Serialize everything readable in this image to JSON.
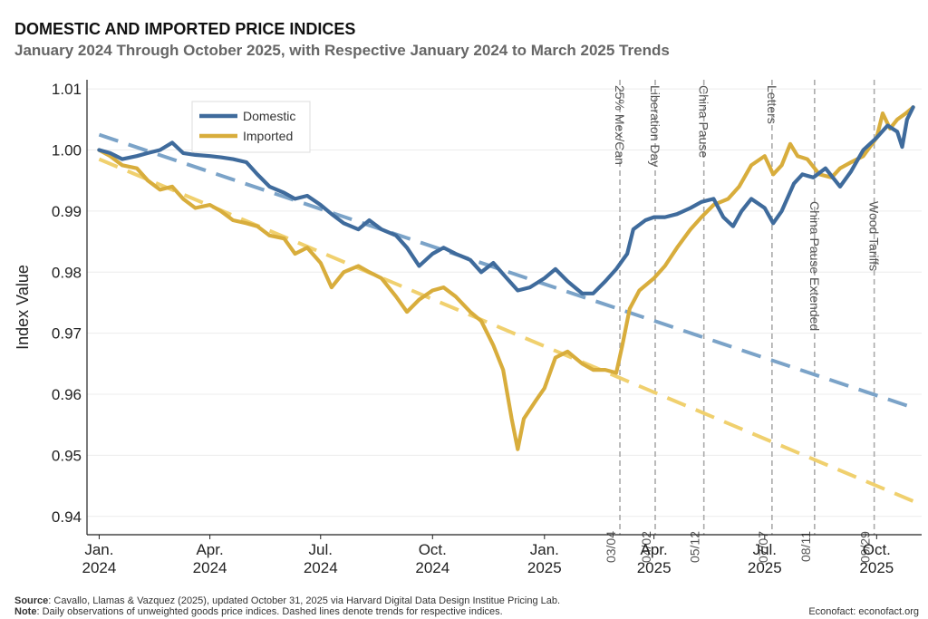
{
  "header": {
    "title": "DOMESTIC AND IMPORTED PRICE INDICES",
    "subtitle": "January 2024 Through October 2025, with Respective January 2024 to March 2025 Trends"
  },
  "footer": {
    "source_label": "Source",
    "source_text": ": Cavallo, Llamas & Vazquez (2025), updated October 31, 2025 via Harvard Digital Data Design Institue Pricing Lab.",
    "note_label": "Note",
    "note_text": ": Daily observations of unweighted goods price indices. Dashed lines denote trends for respective indices.",
    "credit": "Econofact: econofact.org"
  },
  "chart_data": {
    "type": "line",
    "ylabel": "Index Value",
    "ylim": [
      0.937,
      1.0115
    ],
    "yticks": [
      0.94,
      0.95,
      0.96,
      0.97,
      0.98,
      0.99,
      1.0,
      1.01
    ],
    "ytick_labels": [
      "0.94",
      "0.95",
      "0.96",
      "0.97",
      "0.98",
      "0.99",
      "1.00",
      "1.01"
    ],
    "xlim": [
      "2023-12-22",
      "2025-11-07"
    ],
    "xticks": [
      {
        "date": "2024-01-01",
        "line1": "Jan.",
        "line2": "2024"
      },
      {
        "date": "2024-04-01",
        "line1": "Apr.",
        "line2": "2024"
      },
      {
        "date": "2024-07-01",
        "line1": "Jul.",
        "line2": "2024"
      },
      {
        "date": "2024-10-01",
        "line1": "Oct.",
        "line2": "2024"
      },
      {
        "date": "2025-01-01",
        "line1": "Jan.",
        "line2": "2025"
      },
      {
        "date": "2025-04-01",
        "line1": "Apr.",
        "line2": "2025"
      },
      {
        "date": "2025-07-01",
        "line1": "Jul.",
        "line2": "2025"
      },
      {
        "date": "2025-10-01",
        "line1": "Oct.",
        "line2": "2025"
      }
    ],
    "grid": "horizontal",
    "legend_position": "top-left",
    "colors": {
      "domestic": "#3f6b9c",
      "imported": "#d8ad3c",
      "domestic_trend": "#7ba3c8",
      "imported_trend": "#f0d06e",
      "event": "#aaaaaa"
    },
    "series": [
      {
        "name": "Domestic",
        "points": [
          [
            "2024-01-01",
            1.0
          ],
          [
            "2024-01-10",
            0.9995
          ],
          [
            "2024-01-20",
            0.9985
          ],
          [
            "2024-02-01",
            0.999
          ],
          [
            "2024-02-10",
            0.9995
          ],
          [
            "2024-02-20",
            1.0
          ],
          [
            "2024-03-01",
            1.0012
          ],
          [
            "2024-03-10",
            0.9995
          ],
          [
            "2024-03-20",
            0.9992
          ],
          [
            "2024-04-01",
            0.999
          ],
          [
            "2024-04-10",
            0.9988
          ],
          [
            "2024-04-20",
            0.9985
          ],
          [
            "2024-05-01",
            0.998
          ],
          [
            "2024-05-10",
            0.996
          ],
          [
            "2024-05-20",
            0.994
          ],
          [
            "2024-06-01",
            0.993
          ],
          [
            "2024-06-10",
            0.992
          ],
          [
            "2024-06-20",
            0.9925
          ],
          [
            "2024-07-01",
            0.991
          ],
          [
            "2024-07-10",
            0.9895
          ],
          [
            "2024-07-20",
            0.988
          ],
          [
            "2024-08-01",
            0.987
          ],
          [
            "2024-08-10",
            0.9885
          ],
          [
            "2024-08-20",
            0.987
          ],
          [
            "2024-09-01",
            0.986
          ],
          [
            "2024-09-10",
            0.984
          ],
          [
            "2024-09-20",
            0.981
          ],
          [
            "2024-10-01",
            0.983
          ],
          [
            "2024-10-10",
            0.984
          ],
          [
            "2024-10-20",
            0.983
          ],
          [
            "2024-11-01",
            0.982
          ],
          [
            "2024-11-10",
            0.98
          ],
          [
            "2024-11-20",
            0.9815
          ],
          [
            "2024-12-01",
            0.979
          ],
          [
            "2024-12-10",
            0.977
          ],
          [
            "2024-12-20",
            0.9775
          ],
          [
            "2025-01-01",
            0.979
          ],
          [
            "2025-01-10",
            0.9805
          ],
          [
            "2025-01-20",
            0.9785
          ],
          [
            "2025-02-01",
            0.9765
          ],
          [
            "2025-02-10",
            0.9765
          ],
          [
            "2025-02-20",
            0.9785
          ],
          [
            "2025-03-01",
            0.9805
          ],
          [
            "2025-03-10",
            0.983
          ],
          [
            "2025-03-15",
            0.987
          ],
          [
            "2025-03-25",
            0.9885
          ],
          [
            "2025-04-01",
            0.989
          ],
          [
            "2025-04-10",
            0.989
          ],
          [
            "2025-04-20",
            0.9895
          ],
          [
            "2025-05-01",
            0.9905
          ],
          [
            "2025-05-10",
            0.9915
          ],
          [
            "2025-05-20",
            0.992
          ],
          [
            "2025-05-28",
            0.989
          ],
          [
            "2025-06-05",
            0.9875
          ],
          [
            "2025-06-12",
            0.99
          ],
          [
            "2025-06-20",
            0.992
          ],
          [
            "2025-07-01",
            0.9905
          ],
          [
            "2025-07-08",
            0.988
          ],
          [
            "2025-07-15",
            0.99
          ],
          [
            "2025-07-25",
            0.9945
          ],
          [
            "2025-08-01",
            0.996
          ],
          [
            "2025-08-10",
            0.9955
          ],
          [
            "2025-08-20",
            0.997
          ],
          [
            "2025-09-01",
            0.994
          ],
          [
            "2025-09-10",
            0.9965
          ],
          [
            "2025-09-20",
            1.0
          ],
          [
            "2025-10-01",
            1.002
          ],
          [
            "2025-10-10",
            1.004
          ],
          [
            "2025-10-18",
            1.003
          ],
          [
            "2025-10-22",
            1.0005
          ],
          [
            "2025-10-26",
            1.005
          ],
          [
            "2025-10-31",
            1.007
          ]
        ]
      },
      {
        "name": "Imported",
        "points": [
          [
            "2024-01-01",
            1.0
          ],
          [
            "2024-01-10",
            0.999
          ],
          [
            "2024-01-20",
            0.9975
          ],
          [
            "2024-02-01",
            0.997
          ],
          [
            "2024-02-10",
            0.995
          ],
          [
            "2024-02-20",
            0.9935
          ],
          [
            "2024-03-01",
            0.994
          ],
          [
            "2024-03-10",
            0.992
          ],
          [
            "2024-03-20",
            0.9905
          ],
          [
            "2024-04-01",
            0.991
          ],
          [
            "2024-04-10",
            0.99
          ],
          [
            "2024-04-20",
            0.9885
          ],
          [
            "2024-05-01",
            0.988
          ],
          [
            "2024-05-10",
            0.9875
          ],
          [
            "2024-05-20",
            0.986
          ],
          [
            "2024-06-01",
            0.9855
          ],
          [
            "2024-06-10",
            0.983
          ],
          [
            "2024-06-20",
            0.984
          ],
          [
            "2024-07-01",
            0.9815
          ],
          [
            "2024-07-10",
            0.9775
          ],
          [
            "2024-07-20",
            0.98
          ],
          [
            "2024-08-01",
            0.981
          ],
          [
            "2024-08-10",
            0.98
          ],
          [
            "2024-08-20",
            0.979
          ],
          [
            "2024-09-01",
            0.976
          ],
          [
            "2024-09-10",
            0.9735
          ],
          [
            "2024-09-20",
            0.9755
          ],
          [
            "2024-10-01",
            0.977
          ],
          [
            "2024-10-10",
            0.9775
          ],
          [
            "2024-10-20",
            0.976
          ],
          [
            "2024-11-01",
            0.9735
          ],
          [
            "2024-11-10",
            0.972
          ],
          [
            "2024-11-20",
            0.968
          ],
          [
            "2024-11-28",
            0.964
          ],
          [
            "2024-12-05",
            0.956
          ],
          [
            "2024-12-10",
            0.951
          ],
          [
            "2024-12-15",
            0.956
          ],
          [
            "2024-12-25",
            0.959
          ],
          [
            "2025-01-01",
            0.961
          ],
          [
            "2025-01-10",
            0.966
          ],
          [
            "2025-01-20",
            0.967
          ],
          [
            "2025-02-01",
            0.965
          ],
          [
            "2025-02-10",
            0.964
          ],
          [
            "2025-02-20",
            0.964
          ],
          [
            "2025-03-01",
            0.9635
          ],
          [
            "2025-03-06",
            0.968
          ],
          [
            "2025-03-12",
            0.974
          ],
          [
            "2025-03-20",
            0.977
          ],
          [
            "2025-04-01",
            0.979
          ],
          [
            "2025-04-10",
            0.981
          ],
          [
            "2025-04-20",
            0.984
          ],
          [
            "2025-05-01",
            0.987
          ],
          [
            "2025-05-10",
            0.989
          ],
          [
            "2025-05-20",
            0.991
          ],
          [
            "2025-06-01",
            0.992
          ],
          [
            "2025-06-10",
            0.994
          ],
          [
            "2025-06-20",
            0.9975
          ],
          [
            "2025-07-01",
            0.999
          ],
          [
            "2025-07-08",
            0.996
          ],
          [
            "2025-07-15",
            0.9975
          ],
          [
            "2025-07-22",
            1.001
          ],
          [
            "2025-07-28",
            0.999
          ],
          [
            "2025-08-05",
            0.9985
          ],
          [
            "2025-08-15",
            0.996
          ],
          [
            "2025-08-25",
            0.9955
          ],
          [
            "2025-09-01",
            0.997
          ],
          [
            "2025-09-10",
            0.998
          ],
          [
            "2025-09-20",
            0.999
          ],
          [
            "2025-10-01",
            1.002
          ],
          [
            "2025-10-06",
            1.006
          ],
          [
            "2025-10-12",
            1.0035
          ],
          [
            "2025-10-18",
            1.005
          ],
          [
            "2025-10-25",
            1.006
          ],
          [
            "2025-10-31",
            1.007
          ]
        ]
      }
    ],
    "trends": [
      {
        "series": "Domestic",
        "start": [
          "2024-01-01",
          1.0025
        ],
        "end": [
          "2025-10-31",
          0.9578
        ]
      },
      {
        "series": "Imported",
        "start": [
          "2024-01-01",
          0.9985
        ],
        "end": [
          "2025-10-31",
          0.9425
        ]
      }
    ],
    "events": [
      {
        "date": "2025-03-04",
        "label": "25% Mex/Can",
        "date_label": "03/04",
        "label_side": "top"
      },
      {
        "date": "2025-04-02",
        "label": "Liberation Day",
        "date_label": "04/02",
        "label_side": "top"
      },
      {
        "date": "2025-05-12",
        "label": "China Pause",
        "date_label": "05/12",
        "label_side": "top"
      },
      {
        "date": "2025-07-07",
        "label": "Letters",
        "date_label": "07/07",
        "label_side": "top"
      },
      {
        "date": "2025-08-11",
        "label": "China Pause Extended",
        "date_label": "08/11",
        "label_side": "middle"
      },
      {
        "date": "2025-09-29",
        "label": "Wood Tariffs",
        "date_label": "09/29",
        "label_side": "middle"
      }
    ]
  }
}
